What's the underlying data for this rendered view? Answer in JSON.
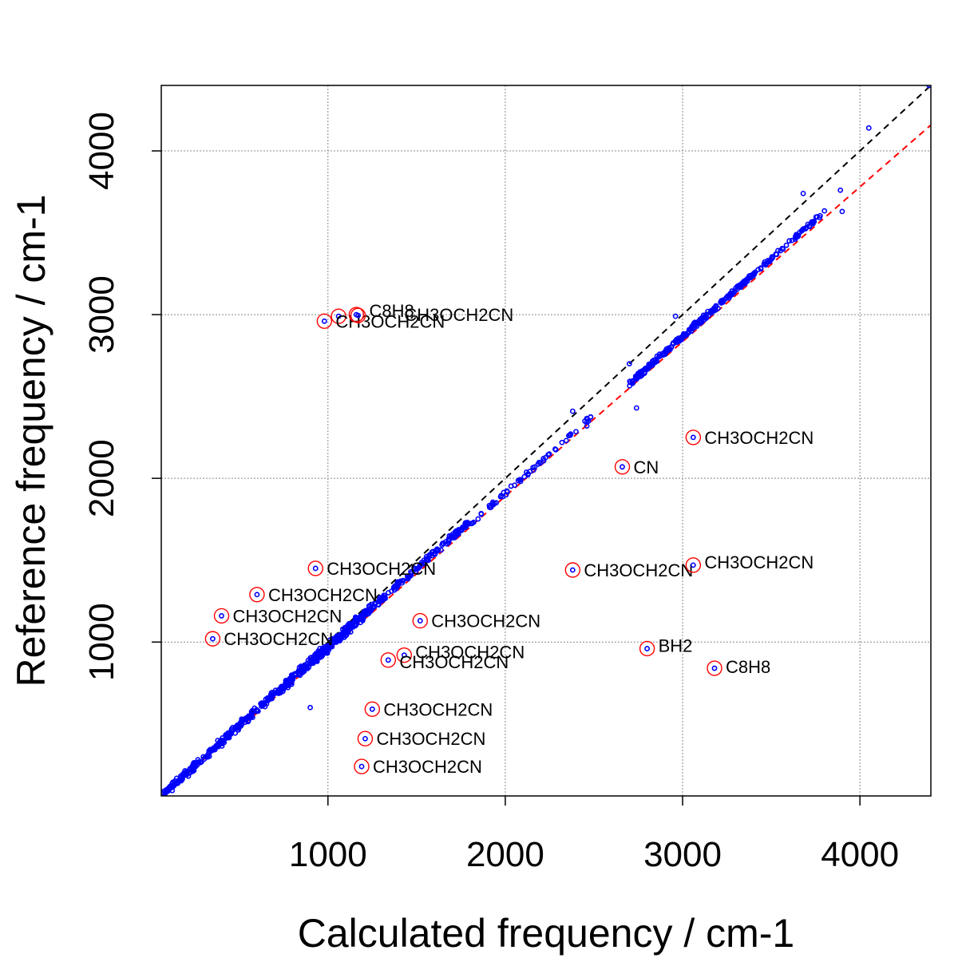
{
  "chart_data": {
    "type": "scatter",
    "title": "",
    "xlabel": "Calculated frequency / cm-1",
    "ylabel": "Reference frequency / cm-1",
    "xlim": [
      60,
      4400
    ],
    "ylim": [
      60,
      4400
    ],
    "grid": true,
    "xticks": [
      {
        "value": 1000,
        "label": "1000"
      },
      {
        "value": 2000,
        "label": "2000"
      },
      {
        "value": 3000,
        "label": "3000"
      },
      {
        "value": 4000,
        "label": "4000"
      }
    ],
    "yticks": [
      {
        "value": 1000,
        "label": "1000"
      },
      {
        "value": 2000,
        "label": "2000"
      },
      {
        "value": 3000,
        "label": "3000"
      },
      {
        "value": 4000,
        "label": "4000"
      }
    ],
    "colors": {
      "points": "#0000ff",
      "outlier_circle": "#ff0000",
      "identity_line": "#000000",
      "fit_line": "#ff0000",
      "grid": "#888888"
    },
    "identity_line": {
      "slope": 1.0,
      "intercept": 0
    },
    "fit_line": {
      "slope": 0.945,
      "intercept": 0
    },
    "sample_ranges": [
      {
        "x0": 60,
        "x1": 700,
        "n": 240,
        "slope": 0.98,
        "spread": 35
      },
      {
        "x0": 700,
        "x1": 1250,
        "n": 320,
        "slope": 0.97,
        "spread": 40
      },
      {
        "x0": 1250,
        "x1": 1800,
        "n": 140,
        "slope": 0.965,
        "spread": 30
      },
      {
        "x0": 1800,
        "x1": 2500,
        "n": 60,
        "slope": 0.955,
        "spread": 25
      },
      {
        "x0": 2700,
        "x1": 3400,
        "n": 230,
        "slope": 0.955,
        "spread": 25
      },
      {
        "x0": 3400,
        "x1": 3800,
        "n": 60,
        "slope": 0.955,
        "spread": 20
      }
    ],
    "extra_points": [
      {
        "x": 4050,
        "y": 4140
      },
      {
        "x": 3890,
        "y": 3760
      },
      {
        "x": 3900,
        "y": 3630
      },
      {
        "x": 3680,
        "y": 3740
      },
      {
        "x": 2740,
        "y": 2430
      },
      {
        "x": 2960,
        "y": 2990
      },
      {
        "x": 4390,
        "y": 4400
      },
      {
        "x": 900,
        "y": 600
      },
      {
        "x": 1230,
        "y": 1200
      },
      {
        "x": 2460,
        "y": 2320
      },
      {
        "x": 2380,
        "y": 2410
      },
      {
        "x": 2700,
        "y": 2700
      }
    ],
    "outliers": [
      {
        "x": 1060,
        "y": 2990,
        "label": "",
        "label_dx": 0,
        "label_dy": 0
      },
      {
        "x": 980,
        "y": 2960,
        "label": "CH3OCH2CN",
        "label_dx": 14,
        "label_dy": 8
      },
      {
        "x": 1170,
        "y": 2995,
        "label": "C8H8",
        "label_dx": 14,
        "label_dy": 2
      },
      {
        "x": 1160,
        "y": 3000,
        "label": "CH3OCH2CN",
        "label_dx": 60,
        "label_dy": 8
      },
      {
        "x": 3060,
        "y": 2250,
        "label": "CH3OCH2CN",
        "label_dx": 14,
        "label_dy": 8
      },
      {
        "x": 2660,
        "y": 2070,
        "label": "CN",
        "label_dx": 14,
        "label_dy": 8
      },
      {
        "x": 930,
        "y": 1450,
        "label": "CH3OCH2CN",
        "label_dx": 14,
        "label_dy": 8
      },
      {
        "x": 2380,
        "y": 1440,
        "label": "CH3OCH2CN",
        "label_dx": 14,
        "label_dy": 8
      },
      {
        "x": 3060,
        "y": 1470,
        "label": "CH3OCH2CN",
        "label_dx": 14,
        "label_dy": 4
      },
      {
        "x": 600,
        "y": 1290,
        "label": "CH3OCH2CN",
        "label_dx": 14,
        "label_dy": 8
      },
      {
        "x": 1520,
        "y": 1130,
        "label": "CH3OCH2CN",
        "label_dx": 14,
        "label_dy": 8
      },
      {
        "x": 400,
        "y": 1160,
        "label": "CH3OCH2CN",
        "label_dx": 14,
        "label_dy": 8
      },
      {
        "x": 350,
        "y": 1020,
        "label": "CH3OCH2CN",
        "label_dx": 14,
        "label_dy": 8
      },
      {
        "x": 2800,
        "y": 960,
        "label": "BH2",
        "label_dx": 14,
        "label_dy": 4
      },
      {
        "x": 1430,
        "y": 920,
        "label": "CH3OCH2CN",
        "label_dx": 14,
        "label_dy": 4
      },
      {
        "x": 1340,
        "y": 890,
        "label": "CH3OCH2CN",
        "label_dx": 14,
        "label_dy": 10
      },
      {
        "x": 3180,
        "y": 840,
        "label": "C8H8",
        "label_dx": 14,
        "label_dy": 6
      },
      {
        "x": 1250,
        "y": 590,
        "label": "CH3OCH2CN",
        "label_dx": 14,
        "label_dy": 8
      },
      {
        "x": 1210,
        "y": 410,
        "label": "CH3OCH2CN",
        "label_dx": 14,
        "label_dy": 8
      },
      {
        "x": 1190,
        "y": 240,
        "label": "CH3OCH2CN",
        "label_dx": 14,
        "label_dy": 8
      }
    ]
  }
}
